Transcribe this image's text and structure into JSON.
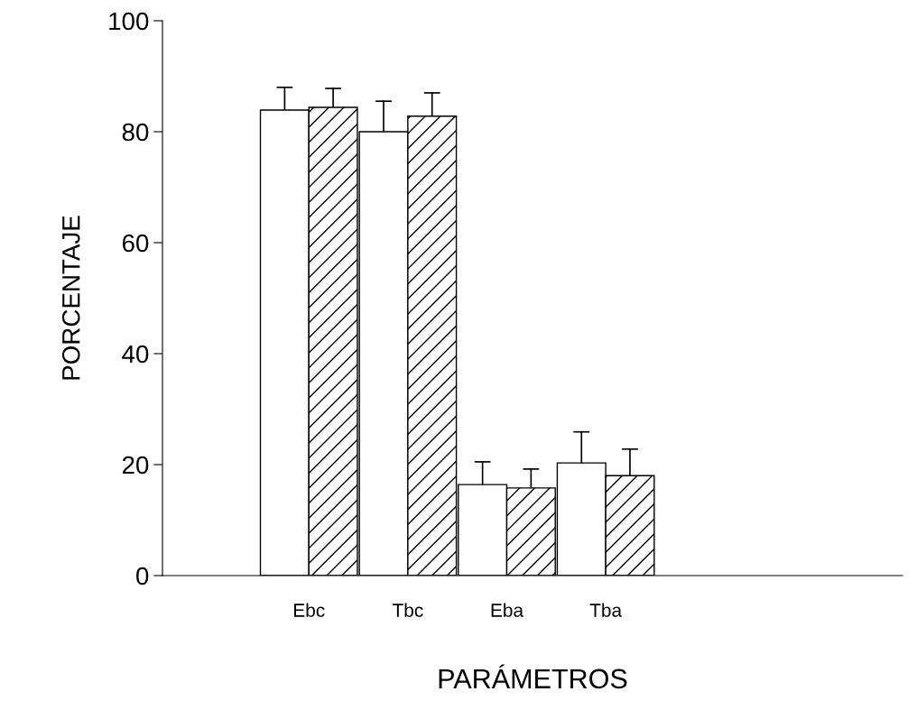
{
  "chart_data": {
    "type": "bar",
    "xlabel": "PARÁMETROS",
    "ylabel": "PORCENTAJE",
    "categories": [
      "Ebc",
      "Tbc",
      "Eba",
      "Tba"
    ],
    "series": [
      {
        "color": "#ffffff",
        "values": [
          83.9,
          80.0,
          16.4,
          20.3
        ],
        "errors": [
          [
            83.9,
            88.0
          ],
          [
            80.0,
            85.5
          ],
          [
            16.4,
            20.5
          ],
          [
            20.3,
            25.9
          ]
        ]
      },
      {
        "color": "#000000",
        "values": [
          84.4,
          82.8,
          15.8,
          18.0
        ],
        "errors": [
          [
            84.4,
            87.8
          ],
          [
            82.8,
            87.0
          ],
          [
            15.8,
            19.2
          ],
          [
            18.0,
            22.8
          ]
        ]
      }
    ],
    "ylim": [
      0,
      100
    ],
    "yticks": [
      0,
      20,
      40,
      60,
      80,
      100
    ],
    "grid": false,
    "legend": false
  }
}
